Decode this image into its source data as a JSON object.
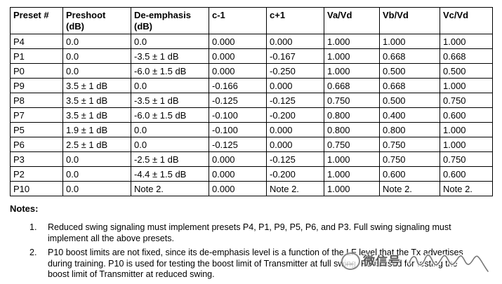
{
  "colors": {
    "background": "#ffffff",
    "text": "#000000",
    "table_border": "#000000",
    "watermark": "#4a4a4a"
  },
  "table": {
    "headers": [
      "Preset #",
      "Preshoot\n(dB)",
      "De-emphasis\n(dB)",
      "c-1",
      "c+1",
      "Va/Vd",
      "Vb/Vd",
      "Vc/Vd"
    ],
    "rows": [
      [
        "P4",
        "0.0",
        "0.0",
        "0.000",
        "0.000",
        "1.000",
        "1.000",
        "1.000"
      ],
      [
        "P1",
        "0.0",
        "-3.5 ± 1 dB",
        "0.000",
        "-0.167",
        "1.000",
        "0.668",
        "0.668"
      ],
      [
        "P0",
        "0.0",
        "-6.0 ± 1.5 dB",
        "0.000",
        "-0.250",
        "1.000",
        "0.500",
        "0.500"
      ],
      [
        "P9",
        "3.5 ± 1 dB",
        "0.0",
        "-0.166",
        "0.000",
        "0.668",
        "0.668",
        "1.000"
      ],
      [
        "P8",
        "3.5 ± 1 dB",
        "-3.5 ± 1 dB",
        "-0.125",
        "-0.125",
        "0.750",
        "0.500",
        "0.750"
      ],
      [
        "P7",
        "3.5 ± 1 dB",
        "-6.0 ± 1.5 dB",
        "-0.100",
        "-0.200",
        "0.800",
        "0.400",
        "0.600"
      ],
      [
        "P5",
        "1.9 ± 1 dB",
        "0.0",
        "-0.100",
        "0.000",
        "0.800",
        "0.800",
        "1.000"
      ],
      [
        "P6",
        "2.5 ± 1 dB",
        "0.0",
        "-0.125",
        "0.000",
        "0.750",
        "0.750",
        "1.000"
      ],
      [
        "P3",
        "0.0",
        "-2.5 ± 1 dB",
        "0.000",
        "-0.125",
        "1.000",
        "0.750",
        "0.750"
      ],
      [
        "P2",
        "0.0",
        "-4.4 ± 1.5 dB",
        "0.000",
        "-0.200",
        "1.000",
        "0.600",
        "0.600"
      ],
      [
        "P10",
        "0.0",
        "Note 2.",
        "0.000",
        "Note 2.",
        "1.000",
        "Note 2.",
        "Note 2."
      ]
    ]
  },
  "notes": {
    "heading": "Notes:",
    "items": [
      {
        "number": "1.",
        "text": "Reduced swing signaling must implement presets P4, P1, P9, P5, P6, and P3. Full swing signaling must\nimplement all the above presets."
      },
      {
        "number": "2.",
        "text": "P10 boost limits are not fixed, since its de-emphasis level is a function of the LF level that the Tx advertises\nduring training. P10 is used for testing the boost limit of Transmitter at full swing. P9 is used for testing the\nboost limit of Transmitter at reduced swing."
      }
    ]
  },
  "watermark": {
    "label": "微信号",
    "icon": "wechat-stamp-icon"
  }
}
